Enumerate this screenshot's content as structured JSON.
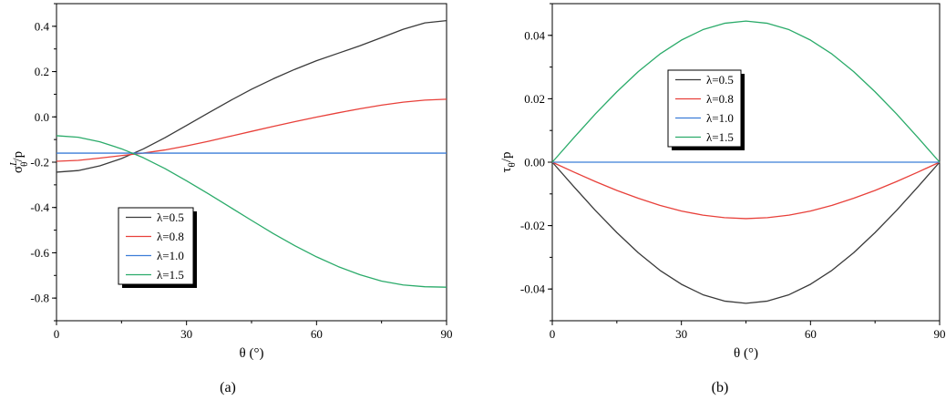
{
  "figure": {
    "panel_labels": [
      "(a)",
      "(b)"
    ]
  },
  "chart_data": [
    {
      "type": "line",
      "panel": "(a)",
      "xlabel": "θ (°)",
      "ylabel_main": "σ",
      "ylabel_sub": "θ",
      "ylabel_sup": "L",
      "ylabel_tail": "/p",
      "xlim": [
        0,
        90
      ],
      "ylim": [
        -0.9,
        0.5
      ],
      "xticks": [
        0,
        30,
        60,
        90
      ],
      "xtick_labels": [
        "0",
        "30",
        "60",
        "90"
      ],
      "yticks": [
        -0.8,
        -0.6,
        -0.4,
        -0.2,
        0.0,
        0.2,
        0.4
      ],
      "ytick_labels": [
        "-0.8",
        "-0.6",
        "-0.4",
        "-0.2",
        "0.0",
        "0.2",
        "0.4"
      ],
      "grid": false,
      "legend_position": "bottom-left",
      "x": [
        0,
        5,
        10,
        15,
        20,
        25,
        30,
        35,
        40,
        45,
        50,
        55,
        60,
        65,
        70,
        75,
        80,
        85,
        90
      ],
      "series": [
        {
          "name": "λ=0.5",
          "color": "#3a3a3a",
          "values": [
            -0.244,
            -0.237,
            -0.216,
            -0.184,
            -0.142,
            -0.092,
            -0.038,
            0.017,
            0.071,
            0.122,
            0.168,
            0.21,
            0.248,
            0.281,
            0.314,
            0.35,
            0.387,
            0.415,
            0.425
          ]
        },
        {
          "name": "λ=0.8",
          "color": "#e8403a",
          "values": [
            -0.196,
            -0.192,
            -0.182,
            -0.171,
            -0.16,
            -0.146,
            -0.128,
            -0.108,
            -0.086,
            -0.064,
            -0.042,
            -0.021,
            -0.001,
            0.018,
            0.036,
            0.052,
            0.065,
            0.074,
            0.078
          ]
        },
        {
          "name": "λ=1.0",
          "color": "#3b7dd8",
          "values": [
            -0.16,
            -0.16,
            -0.16,
            -0.16,
            -0.16,
            -0.16,
            -0.16,
            -0.16,
            -0.16,
            -0.16,
            -0.16,
            -0.16,
            -0.16,
            -0.16,
            -0.16,
            -0.16,
            -0.16,
            -0.16,
            -0.16
          ]
        },
        {
          "name": "λ=1.5",
          "color": "#2bab6a",
          "values": [
            -0.083,
            -0.09,
            -0.11,
            -0.141,
            -0.18,
            -0.228,
            -0.282,
            -0.339,
            -0.398,
            -0.457,
            -0.515,
            -0.569,
            -0.618,
            -0.661,
            -0.697,
            -0.725,
            -0.742,
            -0.75,
            -0.752
          ]
        }
      ]
    },
    {
      "type": "line",
      "panel": "(b)",
      "xlabel": "θ (°)",
      "ylabel_main": "τ",
      "ylabel_sub": "θ",
      "ylabel_tail": "/p",
      "xlim": [
        0,
        90
      ],
      "ylim": [
        -0.05,
        0.05
      ],
      "xticks": [
        0,
        30,
        60,
        90
      ],
      "xtick_labels": [
        "0",
        "30",
        "60",
        "90"
      ],
      "yticks": [
        -0.04,
        -0.02,
        0.0,
        0.02,
        0.04
      ],
      "ytick_labels": [
        "-0.04",
        "-0.02",
        "0.00",
        "0.02",
        "0.04"
      ],
      "grid": false,
      "legend_position": "top-left",
      "x": [
        0,
        5,
        10,
        15,
        20,
        25,
        30,
        35,
        40,
        45,
        50,
        55,
        60,
        65,
        70,
        75,
        80,
        85,
        90
      ],
      "series": [
        {
          "name": "λ=0.5",
          "color": "#3a3a3a",
          "values": [
            0.0,
            -0.0077,
            -0.0152,
            -0.0222,
            -0.0286,
            -0.0341,
            -0.0385,
            -0.0418,
            -0.0438,
            -0.0445,
            -0.0438,
            -0.0418,
            -0.0385,
            -0.0341,
            -0.0286,
            -0.0222,
            -0.0152,
            -0.0077,
            0.0
          ]
        },
        {
          "name": "λ=0.8",
          "color": "#e8403a",
          "values": [
            0.0,
            -0.0031,
            -0.0061,
            -0.0089,
            -0.0114,
            -0.0136,
            -0.0154,
            -0.0167,
            -0.0175,
            -0.0178,
            -0.0175,
            -0.0167,
            -0.0154,
            -0.0136,
            -0.0114,
            -0.0089,
            -0.0061,
            -0.0031,
            0.0
          ]
        },
        {
          "name": "λ=1.0",
          "color": "#3b7dd8",
          "values": [
            0.0,
            0.0,
            0.0,
            0.0,
            0.0,
            0.0,
            0.0,
            0.0,
            0.0,
            0.0,
            0.0,
            0.0,
            0.0,
            0.0,
            0.0,
            0.0,
            0.0,
            0.0,
            0.0
          ]
        },
        {
          "name": "λ=1.5",
          "color": "#2bab6a",
          "values": [
            0.0,
            0.0077,
            0.0152,
            0.0222,
            0.0286,
            0.0341,
            0.0385,
            0.0418,
            0.0438,
            0.0445,
            0.0438,
            0.0418,
            0.0385,
            0.0341,
            0.0286,
            0.0222,
            0.0152,
            0.0077,
            0.0
          ]
        }
      ]
    }
  ]
}
